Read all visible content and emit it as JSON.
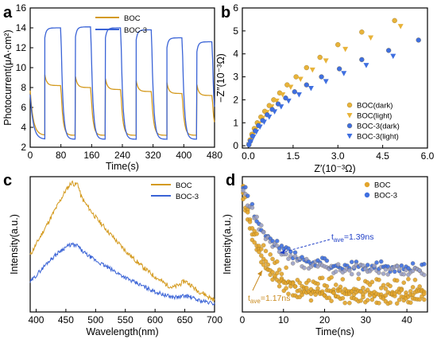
{
  "colors": {
    "boc": "#D49A1E",
    "boc3": "#3A63D6",
    "boc_marker": "#E8B33A",
    "boc3_marker": "#3F6FE0",
    "annot_blue": "#1F3FC7",
    "annot_orange": "#C98A1E"
  },
  "chart_data": [
    {
      "panel": "a",
      "type": "line",
      "xlabel": "Time(s)",
      "ylabel": "Photocurrent(μA·cm²)",
      "xlim": [
        0,
        480
      ],
      "ylim": [
        2,
        16
      ],
      "xticks": [
        "0",
        "80",
        "160",
        "240",
        "320",
        "400",
        "480"
      ],
      "yticks": [
        "2",
        "4",
        "6",
        "8",
        "10",
        "12",
        "14",
        "16"
      ],
      "on_off_cycles": [
        {
          "on": 38,
          "off": 80
        },
        {
          "on": 118,
          "off": 158
        },
        {
          "on": 196,
          "off": 236
        },
        {
          "on": 276,
          "off": 316
        },
        {
          "on": 356,
          "off": 396
        },
        {
          "on": 434,
          "off": 474
        }
      ],
      "series": [
        {
          "name": "BOC",
          "dark": 3.2,
          "light": [
            9.0,
            8.8,
            8.6,
            8.4,
            8.2,
            8.0
          ]
        },
        {
          "name": "BOC-3",
          "dark": 2.8,
          "light": [
            13.6,
            13.7,
            13.6,
            13.4,
            12.6,
            12.2
          ]
        }
      ]
    },
    {
      "panel": "b",
      "type": "scatter",
      "xlabel": "Z′(10⁻³Ω)",
      "ylabel": "−Z″(10⁻³Ω)",
      "xlim": [
        -0.2,
        6.0
      ],
      "ylim": [
        -0.1,
        6.0
      ],
      "xticks": [
        "0.0",
        "1.5",
        "3.0",
        "4.5",
        "6.0"
      ],
      "yticks": [
        "0",
        "1",
        "2",
        "3",
        "4",
        "5",
        "6"
      ],
      "series": [
        {
          "name": "BOC(dark)",
          "x": [
            0.02,
            0.06,
            0.12,
            0.2,
            0.3,
            0.42,
            0.55,
            0.7,
            0.85,
            1.05,
            1.3,
            1.6,
            1.95,
            2.4,
            3.0,
            3.8,
            4.9
          ],
          "y": [
            0.05,
            0.25,
            0.5,
            0.75,
            1.0,
            1.25,
            1.5,
            1.75,
            2.0,
            2.3,
            2.65,
            3.0,
            3.4,
            3.85,
            4.4,
            4.95,
            5.45
          ]
        },
        {
          "name": "BOC(light)",
          "x": [
            0.03,
            0.08,
            0.15,
            0.24,
            0.35,
            0.48,
            0.62,
            0.78,
            0.95,
            1.15,
            1.42,
            1.75,
            2.15,
            2.6,
            3.25,
            4.1,
            5.1
          ],
          "y": [
            0.05,
            0.22,
            0.45,
            0.7,
            0.95,
            1.2,
            1.45,
            1.7,
            1.95,
            2.22,
            2.55,
            2.9,
            3.3,
            3.7,
            4.2,
            4.7,
            5.2
          ]
        },
        {
          "name": "BOC-3(dark)",
          "x": [
            0.02,
            0.07,
            0.14,
            0.23,
            0.34,
            0.48,
            0.63,
            0.8,
            1.0,
            1.25,
            1.55,
            1.95,
            2.45,
            3.05,
            3.8,
            4.7,
            5.7
          ],
          "y": [
            0.04,
            0.2,
            0.42,
            0.65,
            0.88,
            1.1,
            1.35,
            1.58,
            1.82,
            2.08,
            2.35,
            2.65,
            3.0,
            3.35,
            3.75,
            4.15,
            4.6
          ]
        },
        {
          "name": "BOC-3(light)",
          "x": [
            0.03,
            0.09,
            0.17,
            0.27,
            0.39,
            0.53,
            0.7,
            0.88,
            1.1,
            1.35,
            1.7,
            2.1,
            2.6,
            3.2,
            3.95,
            4.85
          ],
          "y": [
            0.04,
            0.18,
            0.38,
            0.6,
            0.82,
            1.03,
            1.25,
            1.48,
            1.7,
            1.95,
            2.22,
            2.5,
            2.8,
            3.15,
            3.5,
            3.9
          ]
        }
      ]
    },
    {
      "panel": "c",
      "type": "line",
      "xlabel": "Wavelength(nm)",
      "ylabel": "Intensity(a.u.)",
      "xlim": [
        390,
        700
      ],
      "xticks": [
        "400",
        "450",
        "500",
        "550",
        "600",
        "650",
        "700"
      ],
      "series": [
        {
          "name": "BOC",
          "x": [
            390,
            400,
            410,
            420,
            430,
            440,
            450,
            455,
            460,
            465,
            470,
            475,
            480,
            490,
            500,
            520,
            540,
            560,
            580,
            600,
            620,
            630,
            640,
            650,
            660,
            670,
            680,
            690,
            700
          ],
          "y": [
            0.42,
            0.5,
            0.58,
            0.66,
            0.74,
            0.82,
            0.9,
            0.93,
            0.96,
            0.94,
            0.95,
            0.86,
            0.82,
            0.76,
            0.7,
            0.6,
            0.5,
            0.41,
            0.33,
            0.26,
            0.2,
            0.18,
            0.2,
            0.23,
            0.2,
            0.16,
            0.14,
            0.11,
            0.09
          ]
        },
        {
          "name": "BOC-3",
          "x": [
            390,
            400,
            410,
            420,
            430,
            440,
            450,
            455,
            460,
            465,
            470,
            475,
            480,
            490,
            500,
            520,
            540,
            560,
            580,
            600,
            620,
            630,
            640,
            650,
            660,
            670,
            680,
            690,
            700
          ],
          "y": [
            0.22,
            0.27,
            0.32,
            0.37,
            0.41,
            0.45,
            0.48,
            0.49,
            0.5,
            0.49,
            0.49,
            0.46,
            0.44,
            0.41,
            0.38,
            0.33,
            0.28,
            0.23,
            0.19,
            0.15,
            0.12,
            0.11,
            0.11,
            0.12,
            0.11,
            0.09,
            0.08,
            0.07,
            0.06
          ]
        }
      ]
    },
    {
      "panel": "d",
      "type": "scatter",
      "xlabel": "Time(ns)",
      "ylabel": "Intensity(a.u.)",
      "xlim": [
        0,
        45
      ],
      "xticks": [
        "0",
        "10",
        "20",
        "30",
        "40"
      ],
      "annotations": [
        "t_ave=1.39ns",
        "t_ave=1.17ns"
      ],
      "series": [
        {
          "name": "BOC",
          "tau": 1.17
        },
        {
          "name": "BOC-3",
          "tau": 1.39
        }
      ]
    }
  ],
  "labels": {
    "panel_a": "a",
    "panel_b": "b",
    "panel_c": "c",
    "panel_d": "d",
    "a_legend": [
      "BOC",
      "BOC-3"
    ],
    "b_legend": [
      "BOC(dark)",
      "BOC(light)",
      "BOC-3(dark)",
      "BOC-3(light)"
    ],
    "c_legend": [
      "BOC",
      "BOC-3"
    ],
    "d_legend": [
      "BOC",
      "BOC-3"
    ],
    "d_ann_blue_t": "t",
    "d_ann_blue_sub": "ave",
    "d_ann_blue_val": "=1.39ns",
    "d_ann_orange_t": "t",
    "d_ann_orange_sub": "ave",
    "d_ann_orange_val": "=1.17ns"
  }
}
